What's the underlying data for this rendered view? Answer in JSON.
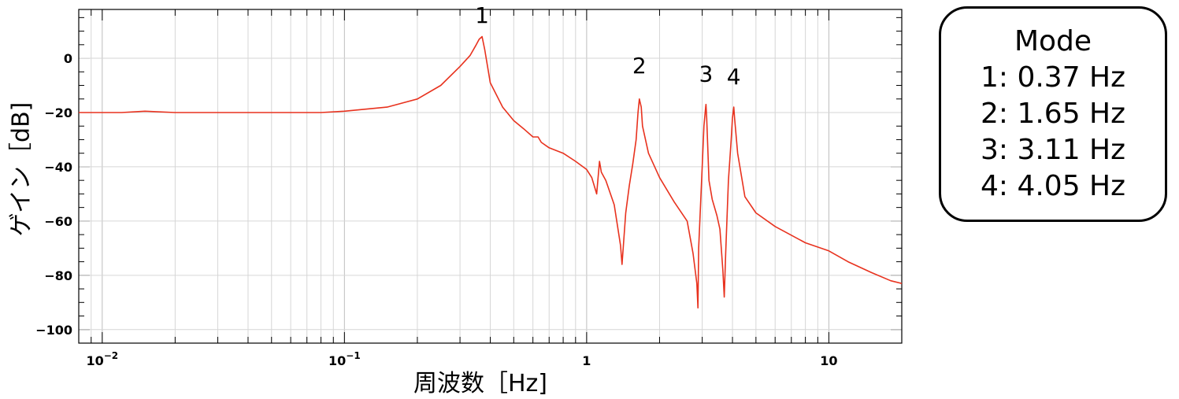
{
  "chart_data": {
    "type": "line",
    "title": "",
    "xlabel": "周波数［Hz]",
    "ylabel": "ゲイン［dB]",
    "x_scale": "log",
    "xlim": [
      0.008,
      20
    ],
    "ylim": [
      -105,
      18
    ],
    "grid": true,
    "x_ticks": [
      {
        "value": 0.01,
        "base": "10",
        "exp": "−2"
      },
      {
        "value": 0.1,
        "base": "10",
        "exp": "−1"
      },
      {
        "value": 1,
        "base": "1",
        "exp": ""
      },
      {
        "value": 10,
        "base": "10",
        "exp": ""
      }
    ],
    "y_ticks": [
      {
        "value": 0,
        "label": "0"
      },
      {
        "value": -20,
        "label": "−20"
      },
      {
        "value": -40,
        "label": "−40"
      },
      {
        "value": -60,
        "label": "−60"
      },
      {
        "value": -80,
        "label": "−80"
      },
      {
        "value": -100,
        "label": "−100"
      }
    ],
    "series": [
      {
        "color": "#e8321e",
        "x": [
          0.008,
          0.012,
          0.015,
          0.02,
          0.03,
          0.05,
          0.08,
          0.1,
          0.15,
          0.2,
          0.25,
          0.3,
          0.33,
          0.35,
          0.36,
          0.37,
          0.38,
          0.4,
          0.45,
          0.5,
          0.55,
          0.6,
          0.63,
          0.65,
          0.7,
          0.8,
          0.9,
          1.0,
          1.05,
          1.1,
          1.13,
          1.15,
          1.2,
          1.3,
          1.38,
          1.4,
          1.45,
          1.5,
          1.55,
          1.6,
          1.63,
          1.65,
          1.68,
          1.7,
          1.8,
          2.0,
          2.3,
          2.6,
          2.75,
          2.85,
          2.88,
          2.9,
          3.0,
          3.05,
          3.1,
          3.11,
          3.13,
          3.2,
          3.3,
          3.45,
          3.55,
          3.65,
          3.7,
          3.75,
          3.85,
          3.95,
          4.0,
          4.05,
          4.08,
          4.2,
          4.5,
          5.0,
          6.0,
          8.0,
          10.0,
          12.0,
          15.0,
          18.0,
          20.0
        ],
        "y": [
          -20,
          -20,
          -19.5,
          -20,
          -20,
          -20,
          -20,
          -19.5,
          -18,
          -15,
          -10,
          -3,
          1,
          5,
          7,
          8,
          3,
          -9,
          -18,
          -23,
          -26,
          -29,
          -29,
          -31,
          -33,
          -35,
          -38,
          -41,
          -44,
          -50,
          -38,
          -42,
          -45,
          -54,
          -69,
          -76,
          -57,
          -47,
          -39,
          -30,
          -20,
          -15,
          -18,
          -25,
          -35,
          -44,
          -53,
          -60,
          -72,
          -83,
          -92,
          -70,
          -40,
          -25,
          -18,
          -17,
          -22,
          -45,
          -52,
          -58,
          -63,
          -78,
          -88,
          -72,
          -45,
          -30,
          -22,
          -18,
          -22,
          -35,
          -51,
          -57,
          -62,
          -68,
          -71,
          -75,
          -79,
          -82,
          -83
        ]
      }
    ],
    "annotations": [
      {
        "text": "1",
        "x": 0.37,
        "y": 13
      },
      {
        "text": "2",
        "x": 1.65,
        "y": -5.5
      },
      {
        "text": "3",
        "x": 3.11,
        "y": -8.5
      },
      {
        "text": "4",
        "x": 4.05,
        "y": -9.5
      }
    ],
    "legend": {
      "title": "Mode",
      "entries": [
        "1: 0.37 Hz",
        "2: 1.65 Hz",
        "3: 3.11 Hz",
        "4: 4.05 Hz"
      ],
      "placement": "right"
    }
  }
}
